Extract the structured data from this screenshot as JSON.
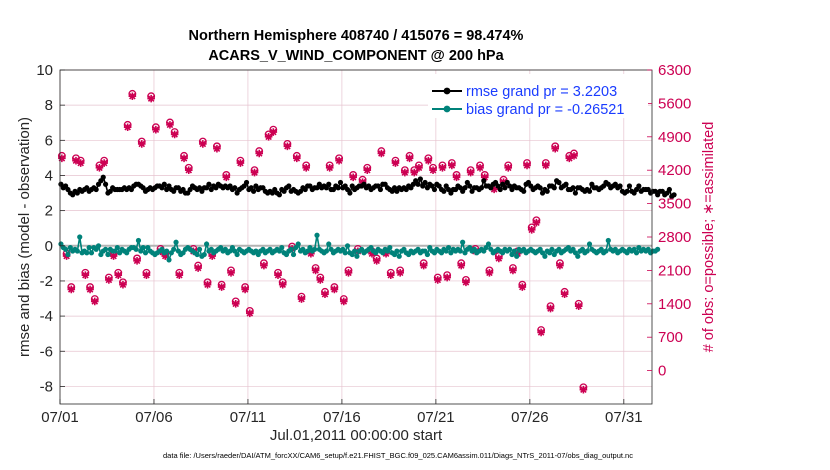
{
  "chart_data": {
    "type": "line",
    "title": [
      "Northern Hemisphere 408740 / 415076 = 98.474%",
      "ACARS_V_WIND_COMPONENT @ 200 hPa"
    ],
    "xlabel": "Jul.01,2011 00:00:00 start",
    "ylabel": "rmse and bias (model - observation)",
    "ylabel_right": "# of obs: o=possible; ∗=assimilated",
    "xlim": [
      0,
      31.5
    ],
    "ylim": [
      -9,
      10
    ],
    "ylim_right": [
      -700,
      6300
    ],
    "x_ticks": [
      0,
      5,
      10,
      15,
      20,
      25,
      30
    ],
    "x_tick_labels": [
      "07/01",
      "07/06",
      "07/11",
      "07/16",
      "07/21",
      "07/26",
      "07/31"
    ],
    "y_ticks": [
      -8,
      -6,
      -4,
      -2,
      0,
      2,
      4,
      6,
      8,
      10
    ],
    "y_tick_labels": [
      "-8",
      "-6",
      "-4",
      "-2",
      "0",
      "2",
      "4",
      "6",
      "8",
      "10"
    ],
    "y_ticks_right": [
      0,
      700,
      1400,
      2100,
      2800,
      3500,
      4200,
      4900,
      5600,
      6300
    ],
    "y_tick_labels_right": [
      "0",
      "700",
      "1400",
      "2100",
      "2800",
      "3500",
      "4200",
      "4900",
      "5600",
      "6300"
    ],
    "legend": [
      "rmse grand pr = 3.2203",
      "bias grand pr = -0.26521"
    ],
    "series": [
      {
        "name": "rmse grand pr = 3.2203",
        "color": "#000000",
        "x_step": 0.125,
        "values": [
          3.5,
          3.3,
          3.4,
          3.2,
          3.0,
          2.9,
          3.1,
          3.0,
          3.2,
          3.1,
          3.2,
          3.3,
          3.1,
          3.2,
          3.3,
          3.2,
          3.5,
          3.7,
          3.9,
          3.5,
          3.0,
          3.1,
          3.3,
          3.2,
          3.2,
          3.2,
          3.2,
          3.3,
          3.2,
          3.3,
          3.2,
          3.4,
          3.5,
          3.5,
          3.4,
          3.3,
          3.1,
          3.2,
          3.3,
          3.2,
          3.3,
          3.4,
          3.4,
          3.3,
          3.5,
          3.2,
          3.4,
          3.2,
          3.1,
          3.3,
          3.3,
          3.1,
          3.2,
          3.0,
          3.0,
          3.2,
          3.4,
          3.3,
          3.2,
          3.3,
          3.1,
          3.3,
          3.3,
          3.5,
          3.2,
          3.4,
          3.3,
          3.5,
          3.4,
          3.3,
          3.4,
          3.3,
          3.4,
          3.2,
          3.3,
          3.0,
          3.2,
          3.3,
          3.4,
          3.6,
          3.2,
          3.3,
          3.1,
          3.4,
          3.2,
          3.3,
          3.3,
          3.1,
          3.0,
          3.1,
          3.0,
          3.2,
          3.0,
          2.9,
          3.2,
          3.1,
          3.3,
          3.4,
          3.1,
          3.2,
          3.1,
          3.0,
          3.1,
          3.3,
          3.2,
          3.4,
          3.4,
          3.2,
          3.3,
          3.3,
          3.5,
          3.3,
          3.4,
          3.3,
          3.5,
          3.2,
          3.2,
          3.4,
          3.3,
          3.6,
          3.3,
          3.4,
          3.2,
          3.0,
          3.4,
          3.2,
          3.3,
          3.4,
          3.4,
          3.5,
          3.3,
          3.4,
          3.2,
          3.3,
          3.4,
          3.4,
          3.2,
          3.5,
          3.5,
          3.3,
          3.2,
          3.1,
          3.3,
          3.1,
          3.3,
          3.2,
          3.3,
          3.2,
          3.4,
          3.3,
          3.5,
          3.7,
          3.5,
          3.8,
          3.4,
          3.6,
          3.3,
          3.5,
          3.4,
          3.2,
          3.5,
          3.4,
          3.2,
          3.1,
          3.4,
          3.2,
          3.0,
          3.2,
          3.2,
          3.4,
          3.3,
          3.1,
          3.3,
          3.6,
          3.4,
          3.1,
          3.3,
          3.3,
          3.2,
          3.3,
          3.7,
          3.4,
          3.4,
          3.3,
          3.5,
          3.6,
          3.4,
          3.2,
          3.5,
          3.3,
          3.6,
          3.4,
          3.2,
          3.4,
          3.3,
          3.3,
          3.2,
          3.1,
          3.5,
          3.6,
          3.4,
          3.2,
          3.3,
          3.4,
          3.3,
          3.0,
          3.2,
          3.1,
          3.4,
          3.4,
          3.3,
          3.7,
          3.6,
          3.3,
          3.4,
          3.5,
          3.2,
          3.2,
          3.3,
          3.0,
          3.3,
          3.3,
          3.2,
          3.1,
          3.2,
          3.1,
          3.5,
          3.3,
          3.3,
          3.2,
          3.3,
          3.4,
          3.6,
          3.5,
          3.3,
          3.4,
          3.5,
          3.3,
          3.4,
          3.1,
          3.0,
          3.1,
          3.4,
          3.1,
          3.0,
          3.2,
          3.4,
          3.1,
          3.2,
          3.2,
          3.2,
          3.0,
          3.1,
          3.1,
          2.9,
          3.1,
          3.1,
          2.9,
          3.0,
          3.2,
          2.8,
          2.9
        ]
      },
      {
        "name": "bias grand pr = -0.26521",
        "color": "#00827a",
        "x_step": 0.125,
        "values": [
          0.1,
          -0.1,
          -0.2,
          -0.5,
          -0.1,
          -0.3,
          -0.2,
          -0.3,
          0.5,
          -0.4,
          -0.3,
          -0.4,
          -0.1,
          -0.4,
          -0.1,
          -0.2,
          0.0,
          -0.5,
          -0.3,
          -0.2,
          -0.5,
          -0.2,
          -0.3,
          -0.3,
          -0.1,
          -0.4,
          -0.2,
          -0.3,
          -0.4,
          -0.2,
          -0.1,
          -0.1,
          -0.2,
          0.3,
          -0.3,
          -0.1,
          -0.4,
          -0.1,
          -0.3,
          -0.4,
          -0.5,
          -0.4,
          -0.3,
          -0.2,
          -0.4,
          -0.3,
          -0.8,
          -0.4,
          -0.2,
          0.2,
          -0.3,
          -0.5,
          -0.4,
          -0.2,
          -0.1,
          -0.2,
          -0.3,
          -0.4,
          -0.5,
          -0.2,
          -0.6,
          -0.5,
          0.1,
          -0.3,
          -0.2,
          -0.4,
          -0.3,
          -0.2,
          -0.1,
          -0.3,
          -0.2,
          -0.4,
          -0.3,
          -0.1,
          -0.3,
          -0.5,
          -0.2,
          -0.3,
          -0.4,
          -0.3,
          -0.2,
          -0.3,
          -0.4,
          -0.3,
          -0.5,
          -0.3,
          -0.2,
          -0.4,
          -0.3,
          -0.2,
          -0.4,
          -0.3,
          -0.2,
          -0.3,
          -0.1,
          -0.4,
          -0.5,
          -0.3,
          -0.2,
          -0.5,
          -0.1,
          0.1,
          -0.3,
          -0.2,
          -0.4,
          -0.3,
          -0.1,
          -0.3,
          -0.2,
          0.6,
          -0.2,
          -0.3,
          -0.4,
          -0.3,
          0.1,
          -0.2,
          -0.4,
          -0.3,
          -0.2,
          -0.3,
          -0.2,
          -0.4,
          0.0,
          -0.4,
          -0.5,
          -0.3,
          -0.6,
          -0.3,
          -0.2,
          -0.4,
          -0.3,
          -0.2,
          -0.1,
          -0.3,
          -0.4,
          -0.2,
          -0.3,
          -0.4,
          -0.2,
          -0.3,
          -0.1,
          -0.4,
          -0.5,
          -0.3,
          -0.6,
          -0.3,
          -0.2,
          -0.4,
          -0.5,
          -0.3,
          -0.4,
          -0.3,
          -0.2,
          -0.4,
          -0.3,
          -0.3,
          -0.5,
          -0.1,
          -0.3,
          -0.4,
          -0.2,
          -0.3,
          -0.4,
          -0.2,
          -0.3,
          -0.1,
          -0.4,
          -0.2,
          -0.3,
          -0.2,
          -0.3,
          0.2,
          -0.4,
          -0.2,
          -0.1,
          -0.3,
          -0.2,
          -0.4,
          -0.3,
          -0.2,
          -0.3,
          -0.1,
          0.1,
          -0.2,
          -0.4,
          -0.3,
          -0.2,
          -0.3,
          -0.4,
          -0.2,
          -0.3,
          -0.2,
          -0.5,
          -0.3,
          -0.6,
          -0.2,
          -0.3,
          -0.2,
          -0.4,
          -0.3,
          -0.2,
          -0.3,
          -0.4,
          -0.3,
          -0.2,
          -0.4,
          -0.6,
          -0.3,
          -0.4,
          -0.2,
          -0.5,
          -0.3,
          -0.2,
          -0.4,
          -0.3,
          -0.2,
          -0.1,
          -0.3,
          -0.2,
          -0.4,
          -0.6,
          -0.3,
          -0.2,
          -0.4,
          -0.3,
          0.1,
          -0.2,
          -0.3,
          -0.4,
          -0.3,
          -0.2,
          -0.4,
          -0.3,
          0.3,
          -0.2,
          -0.3,
          -0.2,
          -0.4,
          -0.3,
          -0.2,
          -0.3,
          -0.4,
          -0.2,
          -0.3,
          -0.2,
          -0.4,
          -0.1,
          -0.3,
          -0.2,
          -0.3,
          -0.2,
          -0.4,
          -0.3,
          -0.3,
          -0.2
        ]
      },
      {
        "name": "# of obs possible",
        "color": "#cc0052",
        "axis": "right",
        "x_step": 0.25,
        "values": [
          4500,
          2450,
          1750,
          4450,
          4400,
          2050,
          1750,
          1500,
          4300,
          4400,
          1950,
          2450,
          2050,
          1850,
          5150,
          5800,
          2350,
          4800,
          2050,
          5750,
          5100,
          2550,
          2450,
          5200,
          5000,
          2050,
          4500,
          4250,
          2550,
          2200,
          4800,
          1850,
          2450,
          4700,
          1800,
          4100,
          2100,
          1450,
          4400,
          1750,
          1250,
          4200,
          4600,
          2250,
          4950,
          5050,
          2050,
          1850,
          4750,
          2600,
          4500,
          1550,
          4300,
          2500,
          2150,
          1950,
          1650,
          4300,
          1750,
          4450,
          1500,
          2100,
          4100,
          2550,
          4000,
          4250,
          2500,
          2350,
          4600,
          2500,
          2050,
          4400,
          2100,
          4200,
          4500,
          4200,
          4300,
          2250,
          4450,
          4250,
          1950,
          4300,
          2000,
          4350,
          4100,
          2250,
          1900,
          4200,
          2550,
          4300,
          4100,
          2100,
          3850,
          2400,
          4000,
          4300,
          2150,
          2500,
          1800,
          4350,
          3000,
          3150,
          850,
          4350,
          1350,
          4700,
          2250,
          1650,
          4500,
          4550,
          1400,
          -350
        ]
      },
      {
        "name": "# of obs assimilated",
        "color": "#cc0052",
        "axis": "right",
        "x_step": 0.25,
        "values": [
          4450,
          2400,
          1700,
          4400,
          4350,
          2000,
          1700,
          1450,
          4250,
          4350,
          1900,
          2400,
          2000,
          1800,
          5100,
          5750,
          2300,
          4750,
          2000,
          5700,
          5050,
          2500,
          2400,
          5150,
          4950,
          2000,
          4450,
          4200,
          2500,
          2150,
          4750,
          1800,
          2400,
          4650,
          1750,
          4050,
          2050,
          1400,
          4350,
          1700,
          1200,
          4150,
          4550,
          2200,
          4900,
          5000,
          2000,
          1800,
          4700,
          2550,
          4450,
          1500,
          4250,
          2450,
          2100,
          1900,
          1600,
          4250,
          1700,
          4400,
          1450,
          2050,
          4050,
          2500,
          3950,
          4200,
          2450,
          2300,
          4550,
          2450,
          2000,
          4350,
          2050,
          4150,
          4450,
          4150,
          4250,
          2200,
          4400,
          4200,
          1900,
          4250,
          1950,
          4300,
          4050,
          2200,
          1850,
          4150,
          2500,
          4250,
          4050,
          2050,
          3800,
          2350,
          3950,
          4250,
          2100,
          2450,
          1750,
          4300,
          2950,
          3100,
          800,
          4300,
          1300,
          4650,
          2200,
          1600,
          4450,
          4500,
          1350,
          -400
        ]
      }
    ]
  },
  "footer": "data file: /Users/raeder/DAI/ATM_forcXX/CAM6_setup/f.e21.FHIST_BGC.f09_025.CAM6assim.011/Diags_NTrS_2011-07/obs_diag_output.nc",
  "colors": {
    "rmse": "#000000",
    "bias": "#00827a",
    "obs": "#cc0052",
    "grid": "#e6c3cf",
    "zero": "#b3b3b3",
    "legend_text": "#1a3cff"
  }
}
